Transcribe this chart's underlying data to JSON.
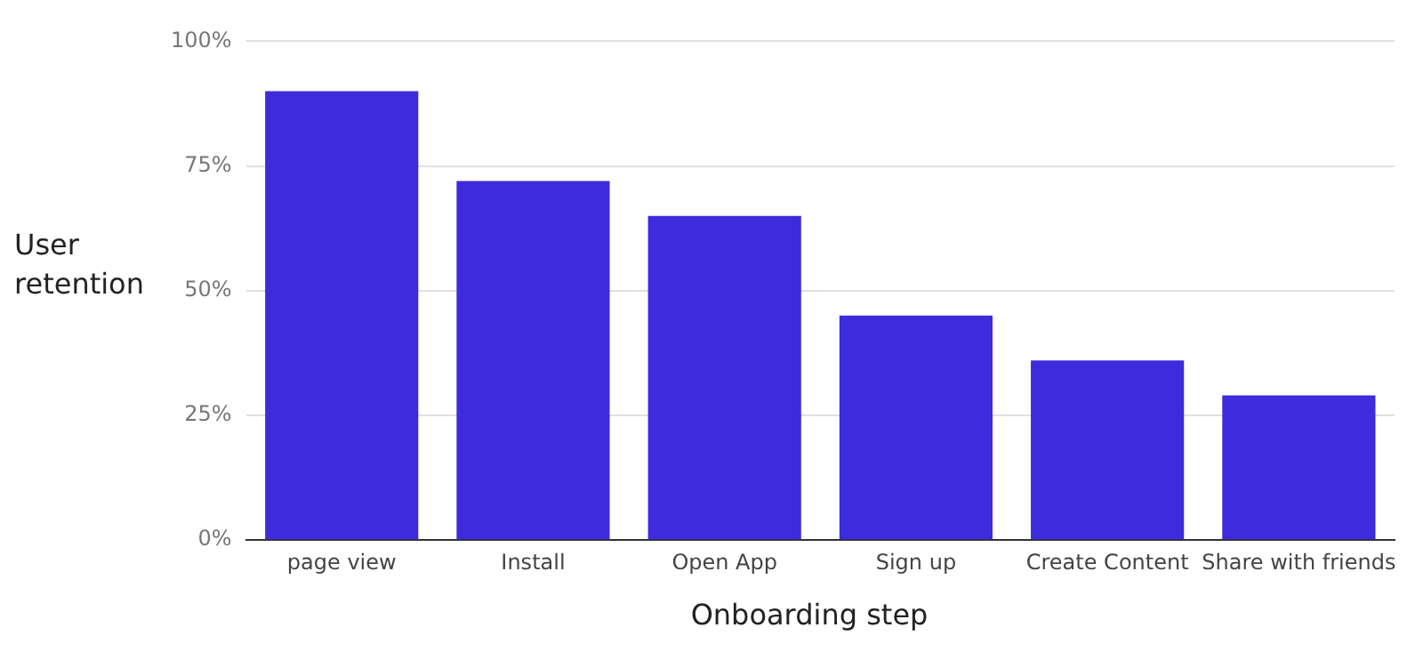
{
  "chart_data": {
    "type": "bar",
    "xlabel": "Onboarding step",
    "ylabel": "User retention",
    "categories": [
      "page view",
      "Install",
      "Open App",
      "Sign up",
      "Create Content",
      "Share with friends"
    ],
    "values": [
      90,
      72,
      65,
      45,
      36,
      29
    ],
    "color": "#3d2bdc",
    "ylim": [
      0,
      100
    ],
    "yticks": [
      {
        "value": 0,
        "label": "0%"
      },
      {
        "value": 25,
        "label": "25%"
      },
      {
        "value": 50,
        "label": "50%"
      },
      {
        "value": 75,
        "label": "75%"
      },
      {
        "value": 100,
        "label": "100%"
      }
    ],
    "grid": "y",
    "legend": false
  }
}
